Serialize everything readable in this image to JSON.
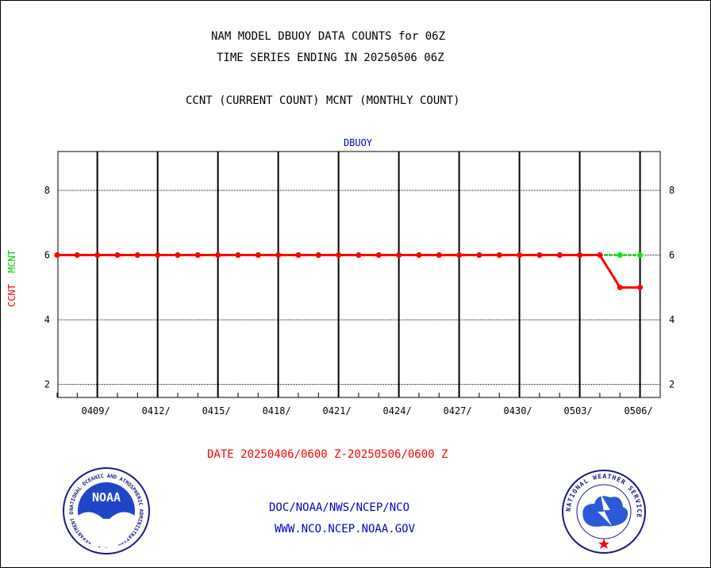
{
  "header": {
    "line1": "NAM MODEL DBUOY DATA COUNTS for 06Z",
    "line2": "TIME SERIES ENDING IN 20250506 06Z",
    "line3": "CCNT (CURRENT COUNT) MCNT (MONTHLY COUNT)"
  },
  "footer": {
    "date_range": "DATE 20250406/0600 Z-20250506/0600 Z",
    "org_line": "DOC/NOAA/NWS/NCEP/NCO",
    "url_line": "WWW.NCO.NCEP.NOAA.GOV",
    "noaa_logo_text": "NOAA",
    "noaa_ring_text": "NATIONAL OCEANIC AND ATMOSPHERIC ADMINISTRATION · U.S. DEPARTMENT OF COMMERCE",
    "nws_ring_text": "NATIONAL WEATHER SERVICE"
  },
  "colors": {
    "ccnt": "#ff0000",
    "mcnt": "#00ee00",
    "title_blue": "#0000cc",
    "date_red": "#ff0000"
  },
  "chart_data": {
    "type": "line",
    "title": "DBUOY",
    "ylabel_ccnt": "CCNT",
    "ylabel_mcnt": "MCNT",
    "ylim": [
      1.6,
      9.2
    ],
    "yticks": [
      2,
      4,
      6,
      8
    ],
    "grid": true,
    "x_days": [
      "0407",
      "0408",
      "0409",
      "0410",
      "0411",
      "0412",
      "0413",
      "0414",
      "0415",
      "0416",
      "0417",
      "0418",
      "0419",
      "0420",
      "0421",
      "0422",
      "0423",
      "0424",
      "0425",
      "0426",
      "0427",
      "0428",
      "0429",
      "0430",
      "0501",
      "0502",
      "0503",
      "0504",
      "0505",
      "0506"
    ],
    "xtick_labels": [
      "0409/",
      "0412/",
      "0415/",
      "0418/",
      "0421/",
      "0424/",
      "0427/",
      "0430/",
      "0503/",
      "0506/"
    ],
    "series": [
      {
        "name": "CCNT",
        "color": "#ff0000",
        "values": [
          6,
          6,
          6,
          6,
          6,
          6,
          6,
          6,
          6,
          6,
          6,
          6,
          6,
          6,
          6,
          6,
          6,
          6,
          6,
          6,
          6,
          6,
          6,
          6,
          6,
          6,
          6,
          6,
          5,
          5
        ]
      },
      {
        "name": "MCNT",
        "color": "#00ee00",
        "values": [
          6,
          6,
          6,
          6,
          6,
          6,
          6,
          6,
          6,
          6,
          6,
          6,
          6,
          6,
          6,
          6,
          6,
          6,
          6,
          6,
          6,
          6,
          6,
          6,
          6,
          6,
          6,
          6,
          6,
          6
        ]
      }
    ]
  }
}
